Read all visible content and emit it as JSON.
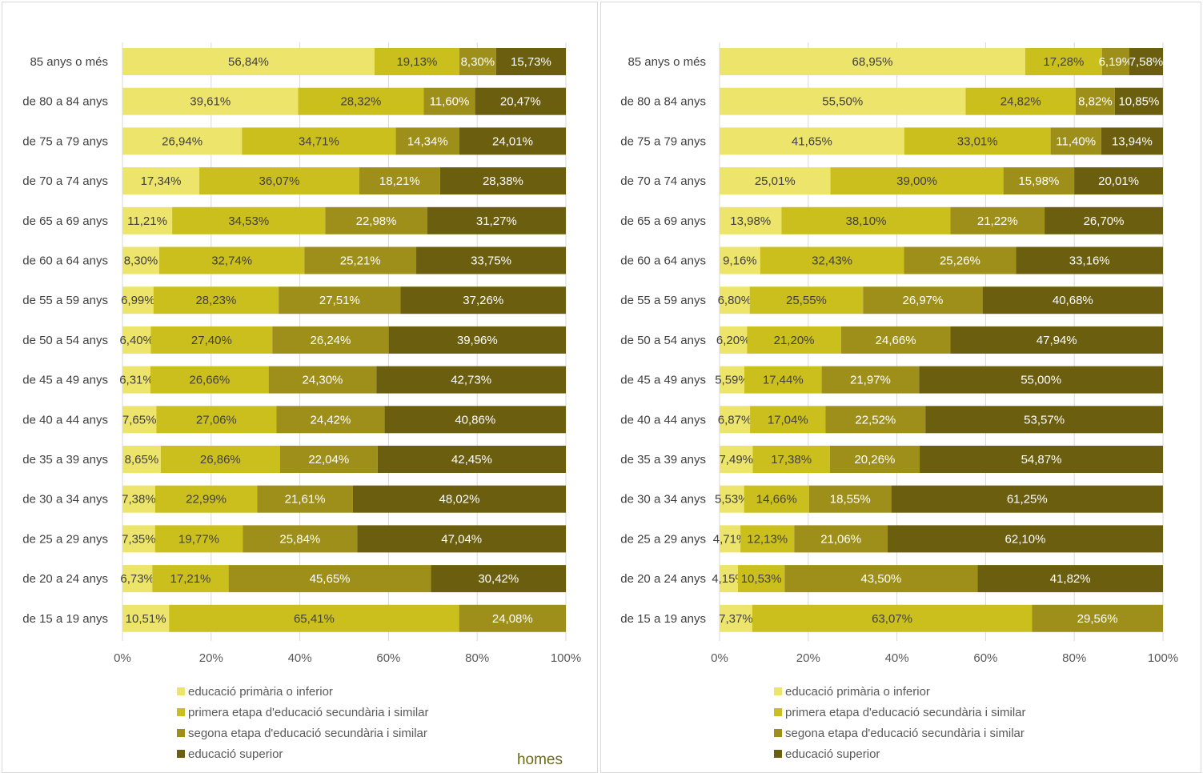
{
  "colors": {
    "level1": "#ede46b",
    "level2": "#cbbf1e",
    "level3": "#9e8f1a",
    "level4": "#6b5e0f",
    "label_dark": "#404040",
    "label_light": "#ffffff",
    "grid": "#d9d9d9",
    "title": "#6b6b16"
  },
  "chart_data": [
    {
      "type": "bar",
      "orientation": "horizontal",
      "stacked": "percent",
      "title": "homes",
      "categories": [
        "85 anys o més",
        "de 80 a 84 anys",
        "de 75 a 79 anys",
        "de 70 a 74 anys",
        "de 65 a 69 anys",
        "de 60 a 64 anys",
        "de 55 a 59 anys",
        "de 50 a 54 anys",
        "de 45 a 49 anys",
        "de 40 a 44 anys",
        "de 35 a 39 anys",
        "de 30 a 34 anys",
        "de 25 a 29 anys",
        "de 20 a 24 anys",
        "de 15 a 19 anys"
      ],
      "series": [
        {
          "name": "educació primària o inferior",
          "values": [
            56.84,
            39.61,
            26.94,
            17.34,
            11.21,
            8.3,
            6.99,
            6.4,
            6.31,
            7.65,
            8.65,
            7.38,
            7.35,
            6.73,
            10.51
          ]
        },
        {
          "name": "primera etapa d'educació secundària i similar",
          "values": [
            19.13,
            28.32,
            34.71,
            36.07,
            34.53,
            32.74,
            28.23,
            27.4,
            26.66,
            27.06,
            26.86,
            22.99,
            19.77,
            17.21,
            65.41
          ]
        },
        {
          "name": "segona etapa d'educació secundària i similar",
          "values": [
            8.3,
            11.6,
            14.34,
            18.21,
            22.98,
            25.21,
            27.51,
            26.24,
            24.3,
            24.42,
            22.04,
            21.61,
            25.84,
            45.65,
            24.08
          ]
        },
        {
          "name": "educació superior",
          "values": [
            15.73,
            20.47,
            24.01,
            28.38,
            31.27,
            33.75,
            37.26,
            39.96,
            42.73,
            40.86,
            42.45,
            48.02,
            47.04,
            30.42,
            0
          ]
        }
      ],
      "labels": [
        [
          "56,84%",
          "19,13%",
          "8,30%",
          "15,73%"
        ],
        [
          "39,61%",
          "28,32%",
          "11,60%",
          "20,47%"
        ],
        [
          "26,94%",
          "34,71%",
          "14,34%",
          "24,01%"
        ],
        [
          "17,34%",
          "36,07%",
          "18,21%",
          "28,38%"
        ],
        [
          "11,21%",
          "34,53%",
          "22,98%",
          "31,27%"
        ],
        [
          "8,30%",
          "32,74%",
          "25,21%",
          "33,75%"
        ],
        [
          "6,99%",
          "28,23%",
          "27,51%",
          "37,26%"
        ],
        [
          "6,40%",
          "27,40%",
          "26,24%",
          "39,96%"
        ],
        [
          "6,31%",
          "26,66%",
          "24,30%",
          "42,73%"
        ],
        [
          "7,65%",
          "27,06%",
          "24,42%",
          "40,86%"
        ],
        [
          "8,65%",
          "26,86%",
          "22,04%",
          "42,45%"
        ],
        [
          "7,38%",
          "22,99%",
          "21,61%",
          "48,02%"
        ],
        [
          "7,35%",
          "19,77%",
          "25,84%",
          "47,04%"
        ],
        [
          "6,73%",
          "17,21%",
          "45,65%",
          "30,42%"
        ],
        [
          "10,51%",
          "65,41%",
          "24,08%",
          ""
        ]
      ],
      "x_ticks": [
        "0%",
        "20%",
        "40%",
        "60%",
        "80%",
        "100%"
      ],
      "xlim": [
        0,
        100
      ],
      "grid": true,
      "legend_position": "bottom"
    },
    {
      "type": "bar",
      "orientation": "horizontal",
      "stacked": "percent",
      "title": "",
      "categories": [
        "85 anys o més",
        "de 80 a 84 anys",
        "de 75 a 79 anys",
        "de 70 a 74 anys",
        "de 65 a 69 anys",
        "de 60 a 64 anys",
        "de 55 a 59 anys",
        "de 50 a 54 anys",
        "de 45 a 49 anys",
        "de 40 a 44 anys",
        "de 35 a 39 anys",
        "de 30 a 34 anys",
        "de 25 a 29 anys",
        "de 20 a 24 anys",
        "de 15 a 19 anys"
      ],
      "series": [
        {
          "name": "educació primària o inferior",
          "values": [
            68.95,
            55.5,
            41.65,
            25.01,
            13.98,
            9.16,
            6.8,
            6.2,
            5.59,
            6.87,
            7.49,
            5.53,
            4.71,
            4.15,
            7.37
          ]
        },
        {
          "name": "primera etapa d'educació secundària i similar",
          "values": [
            17.28,
            24.82,
            33.01,
            39.0,
            38.1,
            32.43,
            25.55,
            21.2,
            17.44,
            17.04,
            17.38,
            14.66,
            12.13,
            10.53,
            63.07
          ]
        },
        {
          "name": "segona etapa d'educació secundària i similar",
          "values": [
            6.19,
            8.82,
            11.4,
            15.98,
            21.22,
            25.26,
            26.97,
            24.66,
            21.97,
            22.52,
            20.26,
            18.55,
            21.06,
            43.5,
            29.56
          ]
        },
        {
          "name": "educació superior",
          "values": [
            7.58,
            10.85,
            13.94,
            20.01,
            26.7,
            33.16,
            40.68,
            47.94,
            55.0,
            53.57,
            54.87,
            61.25,
            62.1,
            41.82,
            0
          ]
        }
      ],
      "labels": [
        [
          "68,95%",
          "17,28%",
          "6,19%",
          "7,58%"
        ],
        [
          "55,50%",
          "24,82%",
          "8,82%",
          "10,85%"
        ],
        [
          "41,65%",
          "33,01%",
          "11,40%",
          "13,94%"
        ],
        [
          "25,01%",
          "39,00%",
          "15,98%",
          "20,01%"
        ],
        [
          "13,98%",
          "38,10%",
          "21,22%",
          "26,70%"
        ],
        [
          "9,16%",
          "32,43%",
          "25,26%",
          "33,16%"
        ],
        [
          "6,80%",
          "25,55%",
          "26,97%",
          "40,68%"
        ],
        [
          "6,20%",
          "21,20%",
          "24,66%",
          "47,94%"
        ],
        [
          "5,59%",
          "17,44%",
          "21,97%",
          "55,00%"
        ],
        [
          "6,87%",
          "17,04%",
          "22,52%",
          "53,57%"
        ],
        [
          "7,49%",
          "17,38%",
          "20,26%",
          "54,87%"
        ],
        [
          "5,53%",
          "14,66%",
          "18,55%",
          "61,25%"
        ],
        [
          "4,71%",
          "12,13%",
          "21,06%",
          "62,10%"
        ],
        [
          "4,15%",
          "10,53%",
          "43,50%",
          "41,82%"
        ],
        [
          "7,37%",
          "63,07%",
          "29,56%",
          ""
        ]
      ],
      "x_ticks": [
        "0%",
        "20%",
        "40%",
        "60%",
        "80%",
        "100%"
      ],
      "xlim": [
        0,
        100
      ],
      "grid": true,
      "legend_position": "bottom"
    }
  ]
}
